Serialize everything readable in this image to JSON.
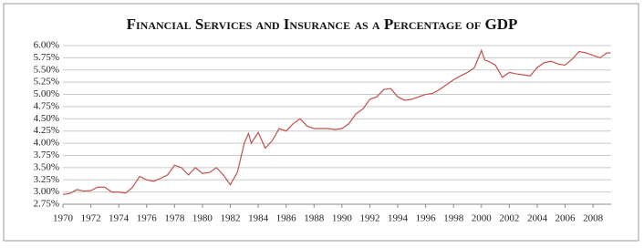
{
  "chart_data": {
    "type": "line",
    "title": "Financial Services and Insurance as a Percentage of GDP",
    "x": [
      1970,
      1970.5,
      1971,
      1971.5,
      1972,
      1972.5,
      1973,
      1973.5,
      1974,
      1974.5,
      1975,
      1975.5,
      1976,
      1976.5,
      1977,
      1977.5,
      1978,
      1978.5,
      1979,
      1979.5,
      1980,
      1980.5,
      1981,
      1981.5,
      1982,
      1982.5,
      1983,
      1983.3,
      1983.5,
      1984,
      1984.5,
      1985,
      1985.5,
      1986,
      1986.5,
      1987,
      1987.5,
      1988,
      1988.5,
      1989,
      1989.5,
      1990,
      1990.5,
      1991,
      1991.5,
      1992,
      1992.5,
      1993,
      1993.5,
      1994,
      1994.5,
      1995,
      1995.5,
      1996,
      1996.5,
      1997,
      1997.5,
      1998,
      1998.5,
      1999,
      1999.5,
      2000,
      2000.25,
      2000.5,
      2001,
      2001.5,
      2002,
      2002.5,
      2003,
      2003.5,
      2004,
      2004.5,
      2005,
      2005.5,
      2006,
      2006.5,
      2007,
      2007.5,
      2008,
      2008.5,
      2009,
      2009.25
    ],
    "series": [
      {
        "color": "#c0504d",
        "values": [
          2.95,
          2.97,
          3.05,
          3.02,
          3.03,
          3.1,
          3.1,
          3.0,
          3.0,
          2.98,
          3.1,
          3.32,
          3.25,
          3.22,
          3.28,
          3.35,
          3.55,
          3.5,
          3.35,
          3.5,
          3.38,
          3.4,
          3.5,
          3.35,
          3.15,
          3.4,
          4.0,
          4.2,
          4.0,
          4.22,
          3.9,
          4.05,
          4.3,
          4.25,
          4.4,
          4.5,
          4.35,
          4.3,
          4.3,
          4.3,
          4.28,
          4.3,
          4.4,
          4.6,
          4.7,
          4.9,
          4.95,
          5.1,
          5.12,
          4.95,
          4.88,
          4.9,
          4.95,
          5.0,
          5.02,
          5.1,
          5.2,
          5.3,
          5.38,
          5.45,
          5.55,
          5.9,
          5.7,
          5.68,
          5.6,
          5.35,
          5.45,
          5.42,
          5.4,
          5.38,
          5.55,
          5.65,
          5.68,
          5.62,
          5.6,
          5.72,
          5.88,
          5.85,
          5.8,
          5.75,
          5.85,
          5.85
        ]
      }
    ],
    "xlim": [
      1970,
      2009.3
    ],
    "xticks": [
      1970,
      1972,
      1974,
      1976,
      1978,
      1980,
      1982,
      1984,
      1986,
      1988,
      1990,
      1992,
      1994,
      1996,
      1998,
      2000,
      2002,
      2004,
      2006,
      2008
    ],
    "ylim": [
      2.75,
      6.0
    ],
    "yticks": [
      {
        "value": 2.75,
        "label": "2.75%"
      },
      {
        "value": 3.0,
        "label": "3.00%"
      },
      {
        "value": 3.25,
        "label": "3.25%"
      },
      {
        "value": 3.5,
        "label": "3.50%"
      },
      {
        "value": 3.75,
        "label": "3.75%"
      },
      {
        "value": 4.0,
        "label": "4.00%"
      },
      {
        "value": 4.25,
        "label": "4.25%"
      },
      {
        "value": 4.5,
        "label": "4.50%"
      },
      {
        "value": 4.75,
        "label": "4.75%"
      },
      {
        "value": 5.0,
        "label": "5.00%"
      },
      {
        "value": 5.25,
        "label": "5.25%"
      },
      {
        "value": 5.5,
        "label": "5.50%"
      },
      {
        "value": 5.75,
        "label": "5.75%"
      },
      {
        "value": 6.0,
        "label": "6.00%"
      }
    ],
    "grid": true
  }
}
